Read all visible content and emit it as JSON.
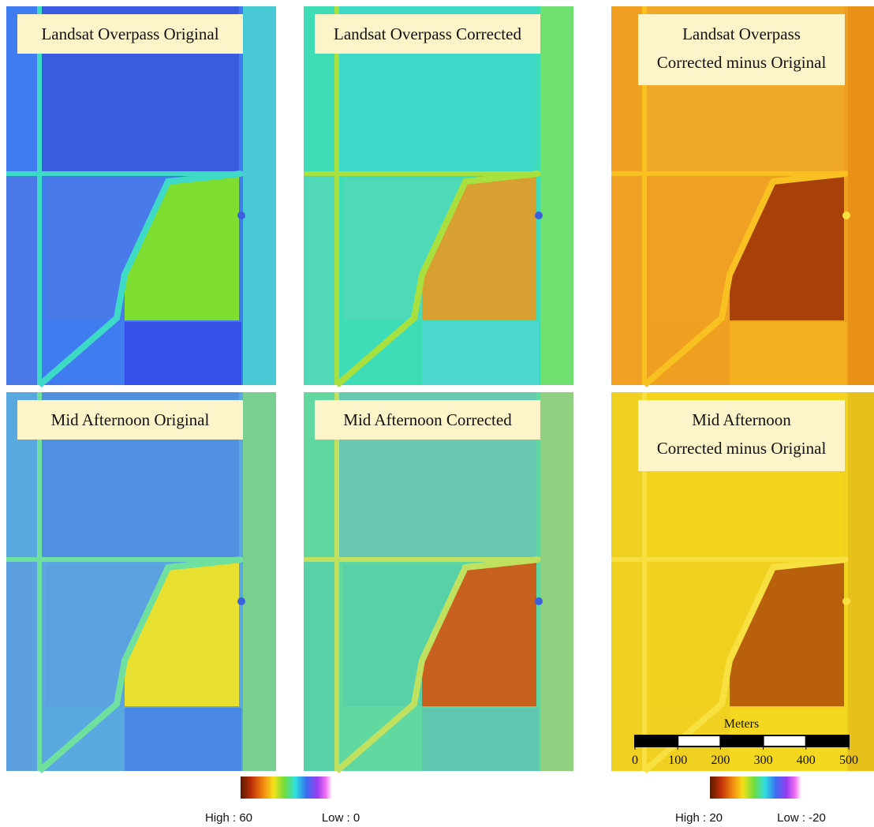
{
  "panels": [
    {
      "title": [
        "Landsat Overpass Original"
      ]
    },
    {
      "title": [
        "Landsat Overpass Corrected"
      ]
    },
    {
      "title": [
        "Landsat Overpass",
        "Corrected minus Original"
      ]
    },
    {
      "title": [
        "Mid Afternoon Original"
      ]
    },
    {
      "title": [
        "Mid Afternoon Corrected"
      ]
    },
    {
      "title": [
        "Mid Afternoon",
        "Corrected minus Original"
      ]
    }
  ],
  "scale_bar": {
    "unit": "Meters",
    "ticks": [
      0,
      100,
      200,
      300,
      400,
      500
    ]
  },
  "legends": [
    {
      "high": "High : 60",
      "low": "Low : 0"
    },
    {
      "high": "High : 20",
      "low": "Low : -20"
    }
  ]
}
